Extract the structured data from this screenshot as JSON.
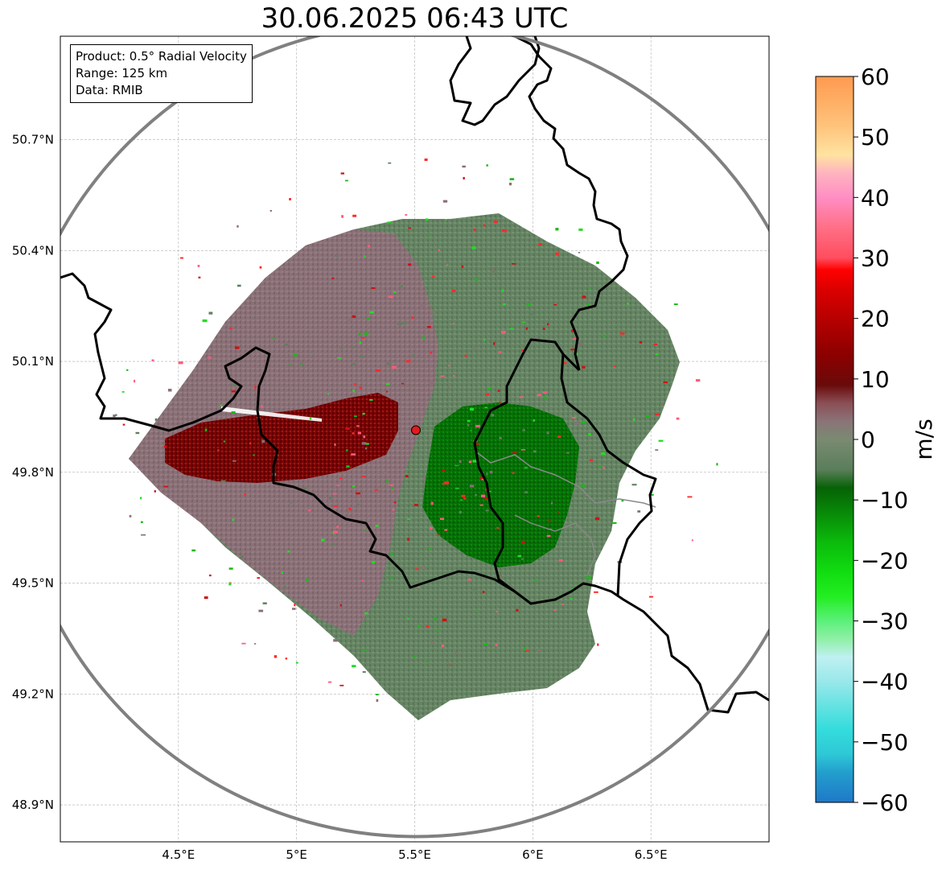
{
  "title": "30.06.2025 06:43 UTC",
  "info": {
    "product": "Product: 0.5° Radial Velocity",
    "range": "Range: 125 km",
    "data": "Data: RMIB"
  },
  "map": {
    "lon_range": [
      4.0,
      7.0
    ],
    "lat_range": [
      48.8,
      50.98
    ],
    "lon_ticks": [
      {
        "value": 4.5,
        "label": "4.5°E"
      },
      {
        "value": 5.0,
        "label": "5°E"
      },
      {
        "value": 5.5,
        "label": "5.5°E"
      },
      {
        "value": 6.0,
        "label": "6°E"
      },
      {
        "value": 6.5,
        "label": "6.5°E"
      }
    ],
    "lat_ticks": [
      {
        "value": 50.7,
        "label": "50.7°N"
      },
      {
        "value": 50.4,
        "label": "50.4°N"
      },
      {
        "value": 50.1,
        "label": "50.1°N"
      },
      {
        "value": 49.8,
        "label": "49.8°N"
      },
      {
        "value": 49.5,
        "label": "49.5°N"
      },
      {
        "value": 49.2,
        "label": "49.2°N"
      },
      {
        "value": 48.9,
        "label": "48.9°N"
      }
    ],
    "radar_site": {
      "lon": 5.505,
      "lat": 49.914,
      "color": "#e31a1c"
    },
    "range_ring_color": "#808080",
    "grid": true
  },
  "colorbar": {
    "unit": "m/s",
    "vmin": -60,
    "vmax": 60,
    "ticks": [
      {
        "value": 60,
        "label": "60"
      },
      {
        "value": 50,
        "label": "50"
      },
      {
        "value": 40,
        "label": "40"
      },
      {
        "value": 30,
        "label": "30"
      },
      {
        "value": 20,
        "label": "20"
      },
      {
        "value": 10,
        "label": "10"
      },
      {
        "value": 0,
        "label": "0"
      },
      {
        "value": -10,
        "label": "−10"
      },
      {
        "value": -20,
        "label": "−20"
      },
      {
        "value": -30,
        "label": "−30"
      },
      {
        "value": -40,
        "label": "−40"
      },
      {
        "value": -50,
        "label": "−50"
      },
      {
        "value": -60,
        "label": "−60"
      }
    ],
    "stops": [
      {
        "v": -60,
        "color": "#1f78c8"
      },
      {
        "v": -55,
        "color": "#239fcd"
      },
      {
        "v": -52,
        "color": "#2ec8d6"
      },
      {
        "v": -48,
        "color": "#33dcdc"
      },
      {
        "v": -44,
        "color": "#66e2e2"
      },
      {
        "v": -40,
        "color": "#99e8ea"
      },
      {
        "v": -36,
        "color": "#bff0f2"
      },
      {
        "v": -33,
        "color": "#8ff0a6"
      },
      {
        "v": -30,
        "color": "#5cf07a"
      },
      {
        "v": -26,
        "color": "#22ee22"
      },
      {
        "v": -22,
        "color": "#11dd11"
      },
      {
        "v": -17,
        "color": "#0bbb0b"
      },
      {
        "v": -12,
        "color": "#088808"
      },
      {
        "v": -8,
        "color": "#066206"
      },
      {
        "v": -5,
        "color": "#5a7e5a"
      },
      {
        "v": 0,
        "color": "#7a8a72"
      },
      {
        "v": 3,
        "color": "#8a7478"
      },
      {
        "v": 6,
        "color": "#8a4f55"
      },
      {
        "v": 9,
        "color": "#6a0a0a"
      },
      {
        "v": 14,
        "color": "#8c0000"
      },
      {
        "v": 20,
        "color": "#b80000"
      },
      {
        "v": 25,
        "color": "#dd0000"
      },
      {
        "v": 28,
        "color": "#ff0000"
      },
      {
        "v": 30,
        "color": "#ff4d5e"
      },
      {
        "v": 35,
        "color": "#ff6f86"
      },
      {
        "v": 40,
        "color": "#ff8ec4"
      },
      {
        "v": 44,
        "color": "#ffb3c0"
      },
      {
        "v": 47,
        "color": "#ffe3a0"
      },
      {
        "v": 52,
        "color": "#ffc27a"
      },
      {
        "v": 60,
        "color": "#ff9a50"
      }
    ]
  },
  "velocity_colors": {
    "inbound_strong": "#066806",
    "inbound_weak": "#5e805e",
    "neutral": "#7f8a78",
    "outbound_weak": "#8a6f76",
    "outbound_strong": "#7a0000"
  }
}
